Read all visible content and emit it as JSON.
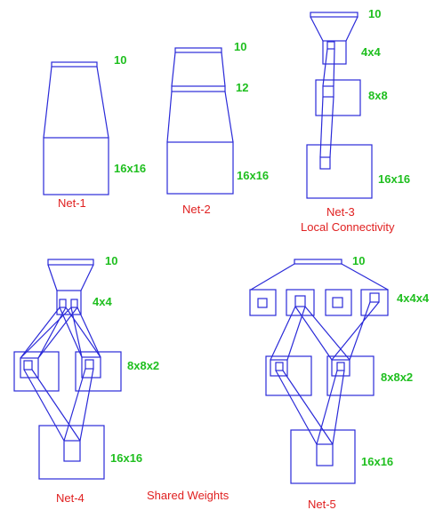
{
  "net1": {
    "name": "Net-1",
    "size_top": "10",
    "size_bottom": "16x16"
  },
  "net2": {
    "name": "Net-2",
    "size_top": "10",
    "size_mid": "12",
    "size_bottom": "16x16"
  },
  "net3": {
    "name": "Net-3",
    "subtitle": "Local Connectivity",
    "size_out": "10",
    "size_h2": "4x4",
    "size_h1": "8x8",
    "size_in": "16x16"
  },
  "net4": {
    "name": "Net-4",
    "size_out": "10",
    "size_h2": "4x4",
    "size_h1": "8x8x2",
    "size_in": "16x16"
  },
  "shared_weights": "Shared Weights",
  "net5": {
    "name": "Net-5",
    "size_out": "10",
    "size_h2": "4x4x4",
    "size_h1": "8x8x2",
    "size_in": "16x16"
  },
  "colors": {
    "lines": "#2a2ad8",
    "size_labels": "#1fbf1f",
    "names": "#e02020"
  }
}
